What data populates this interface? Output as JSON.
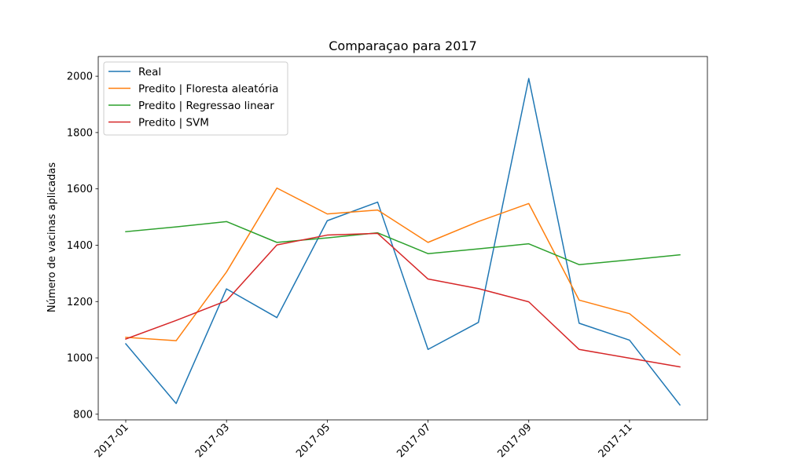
{
  "chart_data": {
    "type": "line",
    "title": "Comparaçao para 2017",
    "xlabel": "",
    "ylabel": "Número de vacinas aplicadas",
    "x": [
      "2017-01",
      "2017-02",
      "2017-03",
      "2017-04",
      "2017-05",
      "2017-06",
      "2017-07",
      "2017-08",
      "2017-09",
      "2017-10",
      "2017-11",
      "2017-12"
    ],
    "x_ticks": [
      "2017-01",
      "2017-03",
      "2017-05",
      "2017-07",
      "2017-09",
      "2017-11"
    ],
    "y_ticks": [
      800,
      1000,
      1200,
      1400,
      1600,
      1800,
      2000
    ],
    "ylim": [
      780,
      2070
    ],
    "grid": false,
    "legend_position": "top-left",
    "series": [
      {
        "name": "Real",
        "color": "#1f77b4",
        "values": [
          1050,
          838,
          1245,
          1143,
          1487,
          1553,
          1030,
          1126,
          1992,
          1123,
          1063,
          833
        ]
      },
      {
        "name": "Predito | Floresta aleatória",
        "color": "#ff7f0e",
        "values": [
          1073,
          1061,
          1305,
          1603,
          1511,
          1525,
          1410,
          1484,
          1548,
          1205,
          1157,
          1011
        ]
      },
      {
        "name": "Predito | Regressao linear",
        "color": "#2ca02c",
        "values": [
          1448,
          1465,
          1484,
          1410,
          1426,
          1444,
          1370,
          1387,
          1405,
          1331,
          1348,
          1366
        ]
      },
      {
        "name": "Predito | SVM",
        "color": "#d62728",
        "values": [
          1067,
          1133,
          1203,
          1401,
          1436,
          1442,
          1280,
          1246,
          1199,
          1030,
          999,
          968
        ]
      }
    ]
  }
}
